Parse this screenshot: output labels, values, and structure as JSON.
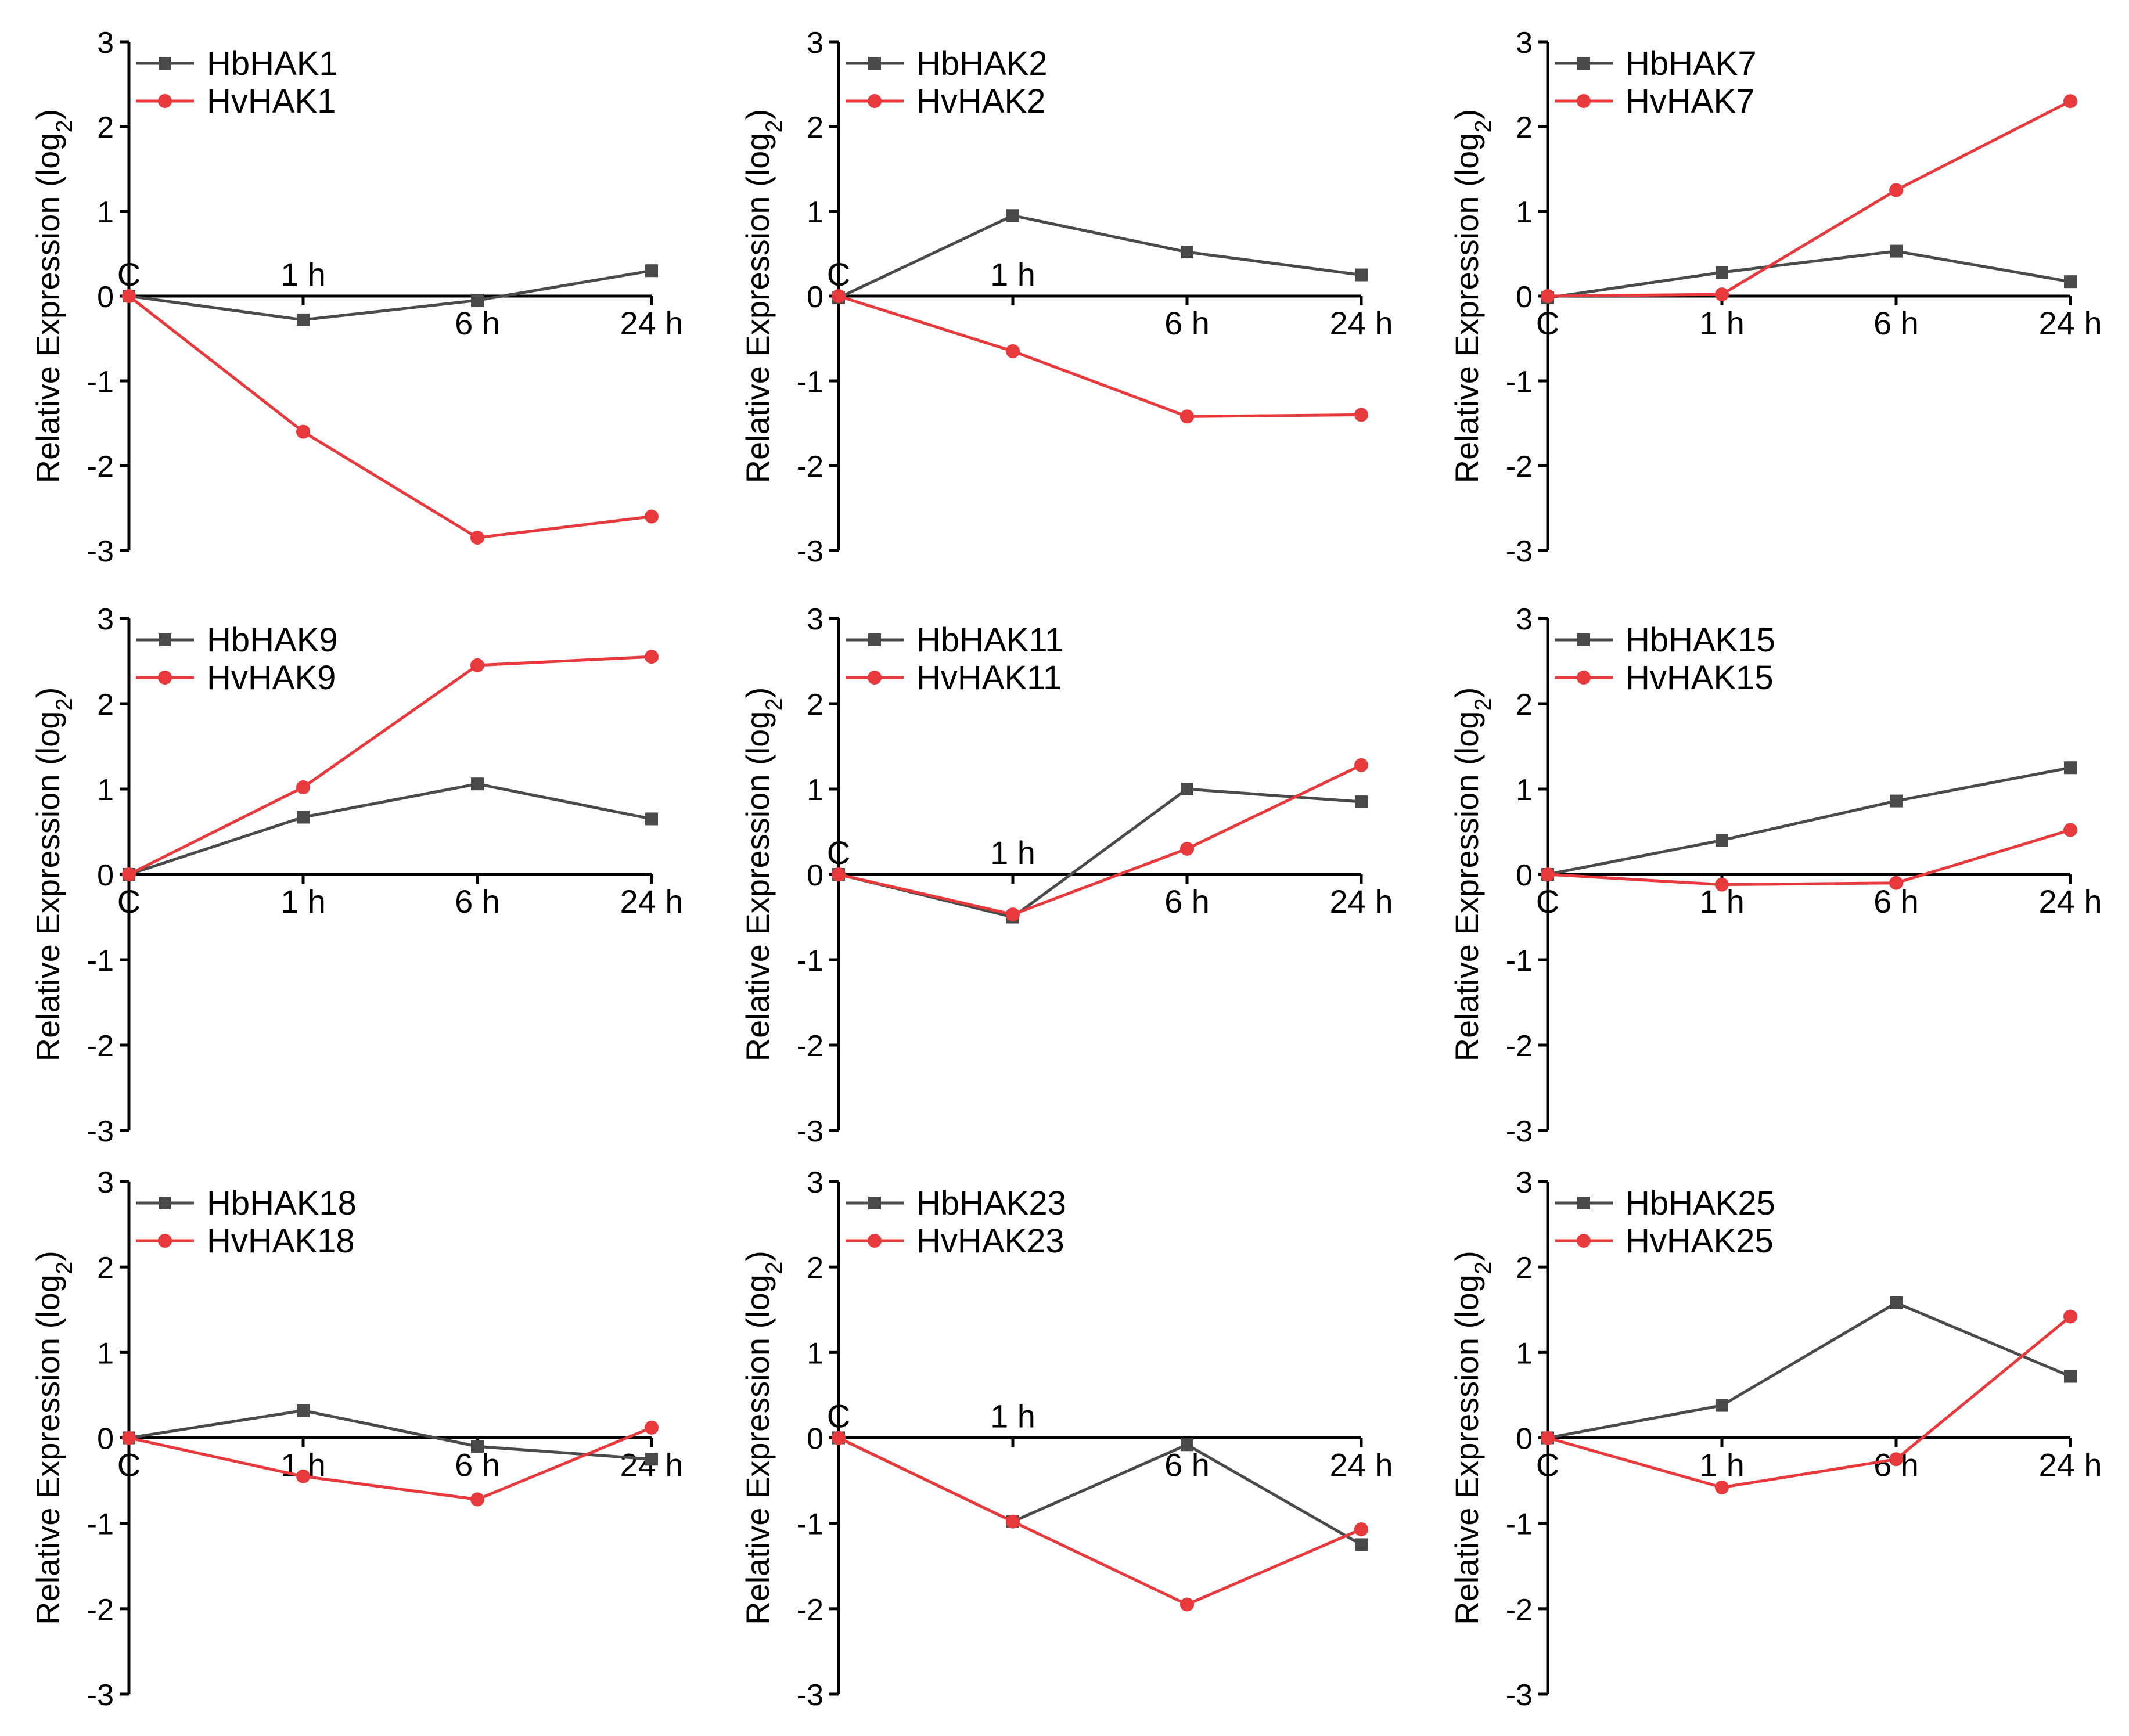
{
  "colors": {
    "hb": "#4a4a4a",
    "hv": "#e8393c"
  },
  "ylabel": "Relative Expression (log",
  "ylabel_sub": "2",
  "ylabel_close": ")",
  "chart_data": [
    {
      "type": "line",
      "categories": [
        "C",
        "1 h",
        "6 h",
        "24 h"
      ],
      "ylim": [
        -3,
        3
      ],
      "yticks": [
        "3",
        "2",
        "1",
        "0",
        "-1",
        "-2",
        "-3"
      ],
      "series": [
        {
          "name": "HbHAK1",
          "marker": "square",
          "values": [
            0,
            -0.28,
            -0.05,
            0.3
          ]
        },
        {
          "name": "HvHAK1",
          "marker": "circle",
          "values": [
            0,
            -1.6,
            -2.85,
            -2.6
          ]
        }
      ]
    },
    {
      "type": "line",
      "categories": [
        "C",
        "1 h",
        "6 h",
        "24 h"
      ],
      "ylim": [
        -3,
        3
      ],
      "yticks": [
        "3",
        "2",
        "1",
        "0",
        "-1",
        "-2",
        "-3"
      ],
      "series": [
        {
          "name": "HbHAK2",
          "marker": "square",
          "values": [
            -0.02,
            0.95,
            0.52,
            0.25
          ]
        },
        {
          "name": "HvHAK2",
          "marker": "circle",
          "values": [
            0,
            -0.65,
            -1.42,
            -1.4
          ]
        }
      ]
    },
    {
      "type": "line",
      "categories": [
        "C",
        "1 h",
        "6 h",
        "24 h"
      ],
      "ylim": [
        -3,
        3
      ],
      "yticks": [
        "3",
        "2",
        "1",
        "0",
        "-1",
        "-2",
        "-3"
      ],
      "series": [
        {
          "name": "HbHAK7",
          "marker": "square",
          "values": [
            -0.02,
            0.28,
            0.53,
            0.17
          ]
        },
        {
          "name": "HvHAK7",
          "marker": "circle",
          "values": [
            0,
            0.02,
            1.25,
            2.3
          ]
        }
      ]
    },
    {
      "type": "line",
      "categories": [
        "C",
        "1 h",
        "6 h",
        "24 h"
      ],
      "ylim": [
        -3,
        3
      ],
      "yticks": [
        "3",
        "2",
        "1",
        "0",
        "-1",
        "-2",
        "-3"
      ],
      "series": [
        {
          "name": "HbHAK9",
          "marker": "square",
          "values": [
            0,
            0.67,
            1.06,
            0.65
          ]
        },
        {
          "name": "HvHAK9",
          "marker": "circle",
          "values": [
            0,
            1.02,
            2.45,
            2.55
          ]
        }
      ]
    },
    {
      "type": "line",
      "categories": [
        "C",
        "1 h",
        "6 h",
        "24 h"
      ],
      "ylim": [
        -3,
        3
      ],
      "yticks": [
        "3",
        "2",
        "1",
        "0",
        "-1",
        "-2",
        "-3"
      ],
      "series": [
        {
          "name": "HbHAK11",
          "marker": "square",
          "values": [
            0,
            -0.5,
            1.0,
            0.85
          ]
        },
        {
          "name": "HvHAK11",
          "marker": "circle",
          "values": [
            0,
            -0.47,
            0.3,
            1.28
          ]
        }
      ]
    },
    {
      "type": "line",
      "categories": [
        "C",
        "1 h",
        "6 h",
        "24 h"
      ],
      "ylim": [
        -3,
        3
      ],
      "yticks": [
        "3",
        "2",
        "1",
        "0",
        "-1",
        "-2",
        "-3"
      ],
      "series": [
        {
          "name": "HbHAK15",
          "marker": "square",
          "values": [
            0,
            0.4,
            0.86,
            1.25
          ]
        },
        {
          "name": "HvHAK15",
          "marker": "circle",
          "values": [
            0,
            -0.12,
            -0.1,
            0.52
          ]
        }
      ]
    },
    {
      "type": "line",
      "categories": [
        "C",
        "1 h",
        "6 h",
        "24 h"
      ],
      "ylim": [
        -3,
        3
      ],
      "yticks": [
        "3",
        "2",
        "1",
        "0",
        "-1",
        "-2",
        "-3"
      ],
      "series": [
        {
          "name": "HbHAK18",
          "marker": "square",
          "values": [
            0,
            0.32,
            -0.1,
            -0.25
          ]
        },
        {
          "name": "HvHAK18",
          "marker": "circle",
          "values": [
            0,
            -0.45,
            -0.72,
            0.12
          ]
        }
      ]
    },
    {
      "type": "line",
      "categories": [
        "C",
        "1 h",
        "6 h",
        "24 h"
      ],
      "ylim": [
        -3,
        3
      ],
      "yticks": [
        "3",
        "2",
        "1",
        "0",
        "-1",
        "-2",
        "-3"
      ],
      "series": [
        {
          "name": "HbHAK23",
          "marker": "square",
          "values": [
            0,
            -0.98,
            -0.08,
            -1.25
          ]
        },
        {
          "name": "HvHAK23",
          "marker": "circle",
          "values": [
            0,
            -0.98,
            -1.95,
            -1.07
          ]
        }
      ]
    },
    {
      "type": "line",
      "categories": [
        "C",
        "1 h",
        "6 h",
        "24 h"
      ],
      "ylim": [
        -3,
        3
      ],
      "yticks": [
        "3",
        "2",
        "1",
        "0",
        "-1",
        "-2",
        "-3"
      ],
      "series": [
        {
          "name": "HbHAK25",
          "marker": "square",
          "values": [
            0,
            0.38,
            1.58,
            0.72
          ]
        },
        {
          "name": "HvHAK25",
          "marker": "circle",
          "values": [
            0,
            -0.58,
            -0.25,
            1.42
          ]
        }
      ]
    }
  ]
}
